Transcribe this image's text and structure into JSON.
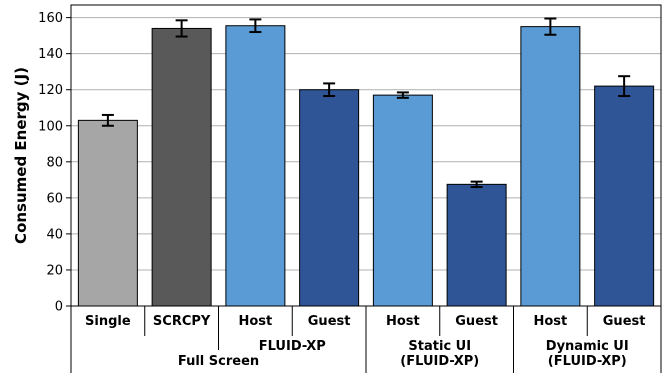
{
  "chart_data": {
    "type": "bar",
    "ylabel": "Consumed Energy (J)",
    "xlabel": "",
    "ylim": [
      0,
      167
    ],
    "yticks": [
      0,
      20,
      40,
      60,
      80,
      100,
      120,
      140,
      160
    ],
    "grid": "horizontal",
    "bars": [
      {
        "label": "Single",
        "value": 103,
        "err": 3,
        "color": "#a6a6a6"
      },
      {
        "label": "SCRCPY",
        "value": 154,
        "err": 4.5,
        "color": "#595959"
      },
      {
        "label": "Host",
        "value": 155.5,
        "err": 3.5,
        "color": "#5b9bd5"
      },
      {
        "label": "Guest",
        "value": 120,
        "err": 3.5,
        "color": "#2f5597"
      },
      {
        "label": "Host",
        "value": 117,
        "err": 1.5,
        "color": "#5b9bd5"
      },
      {
        "label": "Guest",
        "value": 67.5,
        "err": 1.5,
        "color": "#2f5597"
      },
      {
        "label": "Host",
        "value": 155,
        "err": 4.5,
        "color": "#5b9bd5"
      },
      {
        "label": "Guest",
        "value": 122,
        "err": 5.5,
        "color": "#2f5597"
      }
    ],
    "groups": [
      {
        "label": "FLUID-XP",
        "line2": "",
        "first": 2,
        "last": 3,
        "row": 1
      },
      {
        "label": "Full Screen",
        "line2": "",
        "first": 0,
        "last": 3,
        "row": 2
      },
      {
        "label": "Static UI",
        "line2": "(FLUID-XP)",
        "first": 4,
        "last": 5,
        "row": 1
      },
      {
        "label": "Dynamic UI",
        "line2": "(FLUID-XP)",
        "first": 6,
        "last": 7,
        "row": 1
      }
    ]
  }
}
